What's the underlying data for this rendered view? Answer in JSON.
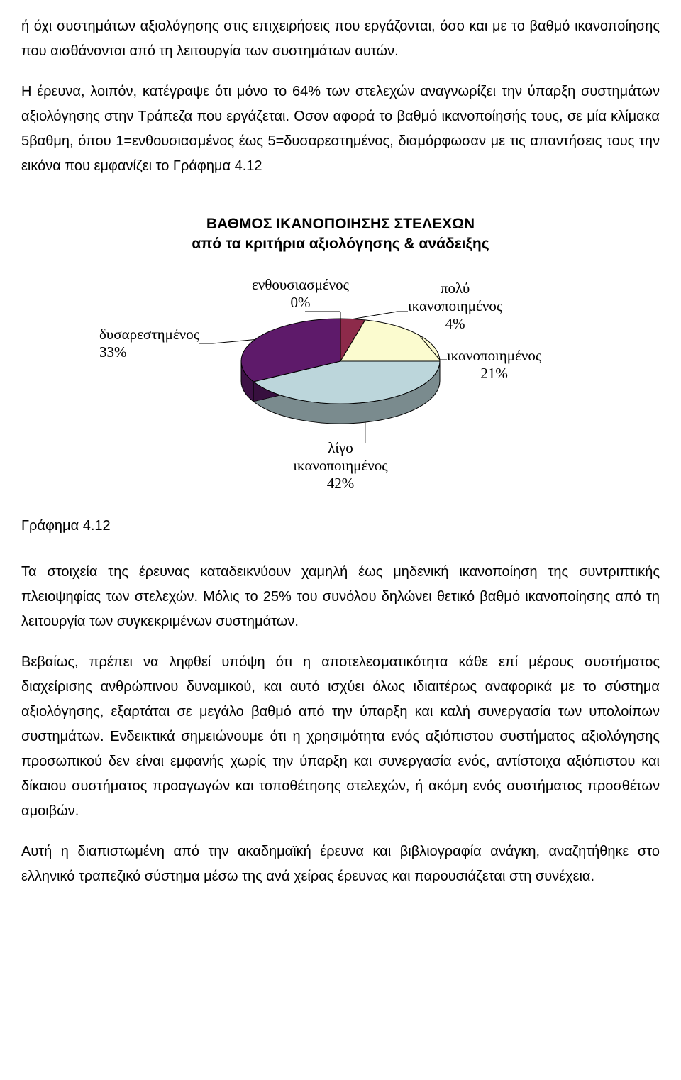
{
  "paragraphs": {
    "p1": "ή όχι συστημάτων αξιολόγησης στις επιχειρήσεις που εργάζονται, όσο και με το βαθμό ικανοποίησης που αισθάνονται από τη λειτουργία των συστημάτων αυτών.",
    "p2": "Η έρευνα, λοιπόν, κατέγραψε ότι μόνο το 64% των στελεχών αναγνωρίζει την ύπαρξη συστημάτων αξιολόγησης στην Τράπεζα που εργάζεται. Οσον αφορά το βαθμό ικανοποίησής τους, σε μία κλίμακα 5βαθμη, όπου 1=ενθουσιασμένος έως 5=δυσαρεστημένος, διαμόρφωσαν με τις απαντήσεις τους την εικόνα που εμφανίζει το Γράφημα 4.12",
    "p3": "Τα στοιχεία της έρευνας καταδεικνύουν χαμηλή έως μηδενική ικανοποίηση της συντριπτικής πλειοψηφίας των στελεχών. Μόλις το 25% του συνόλου δηλώνει θετικό βαθμό ικανοποίησης από τη λειτουργία των συγκεκριμένων συστημάτων.",
    "p4": "Βεβαίως, πρέπει να ληφθεί υπόψη ότι η αποτελεσματικότητα κάθε επί μέρους συστήματος διαχείρισης ανθρώπινου δυναμικού, και αυτό ισχύει όλως ιδιαιτέρως αναφορικά με το σύστημα αξιολόγησης, εξαρτάται σε μεγάλο βαθμό από την ύπαρξη και καλή συνεργασία των υπολοίπων συστημάτων. Ενδεικτικά σημειώνουμε ότι η χρησιμότητα ενός αξιόπιστου συστήματος αξιολόγησης προσωπικού δεν είναι εμφανής χωρίς την ύπαρξη και συνεργασία ενός, αντίστοιχα αξιόπιστου και δίκαιου συστήματος προαγωγών και τοποθέτησης στελεχών, ή ακόμη ενός συστήματος προσθέτων αμοιβών.",
    "p5": "Αυτή η διαπιστωμένη από την ακαδημαϊκή έρευνα και βιβλιογραφία ανάγκη, αναζητήθηκε στο ελληνικό τραπεζικό σύστημα μέσω της ανά χείρας έρευνας και παρουσιάζεται στη συνέχεια."
  },
  "chart": {
    "type": "pie",
    "title_line1": "ΒΑΘΜΟΣ ΙΚΑΝΟΠΟΙΗΣΗΣ ΣΤΕΛΕΧΩΝ",
    "title_line2": "από τα κριτήρια αξιολόγησης & ανάδειξης",
    "slices": [
      {
        "key": "enthousiasmenos",
        "label_line1": "ενθουσιασμένος",
        "label_line2": "0%",
        "value": 0,
        "color": "#333333"
      },
      {
        "key": "poly_ikanopoimenos",
        "label_line1": "πολύ",
        "label_line2": "ικανοποιημένος",
        "label_line3": "4%",
        "value": 4,
        "color": "#8d2a4a"
      },
      {
        "key": "ikanopoimenos",
        "label_line1": "ικανοποιημένος",
        "label_line2": "21%",
        "value": 21,
        "color": "#fbfbcf"
      },
      {
        "key": "ligo_ikanopoimenos",
        "label_line1": "λίγο",
        "label_line2": "ικανοποιημένος",
        "label_line3": "42%",
        "value": 42,
        "color": "#bcd6db"
      },
      {
        "key": "dysarestimenos",
        "label_line1": "δυσαρεστημένος",
        "label_line2": "33%",
        "value": 33,
        "color": "#5e1a6a"
      }
    ],
    "depth_color_darken": 0.65,
    "border_color": "#000000",
    "leader_color": "#000000",
    "background_color": "#ffffff",
    "label_fontfamily": "Times New Roman",
    "label_fontsize": 21,
    "title_fontsize": 21
  },
  "caption": "Γράφημα 4.12"
}
